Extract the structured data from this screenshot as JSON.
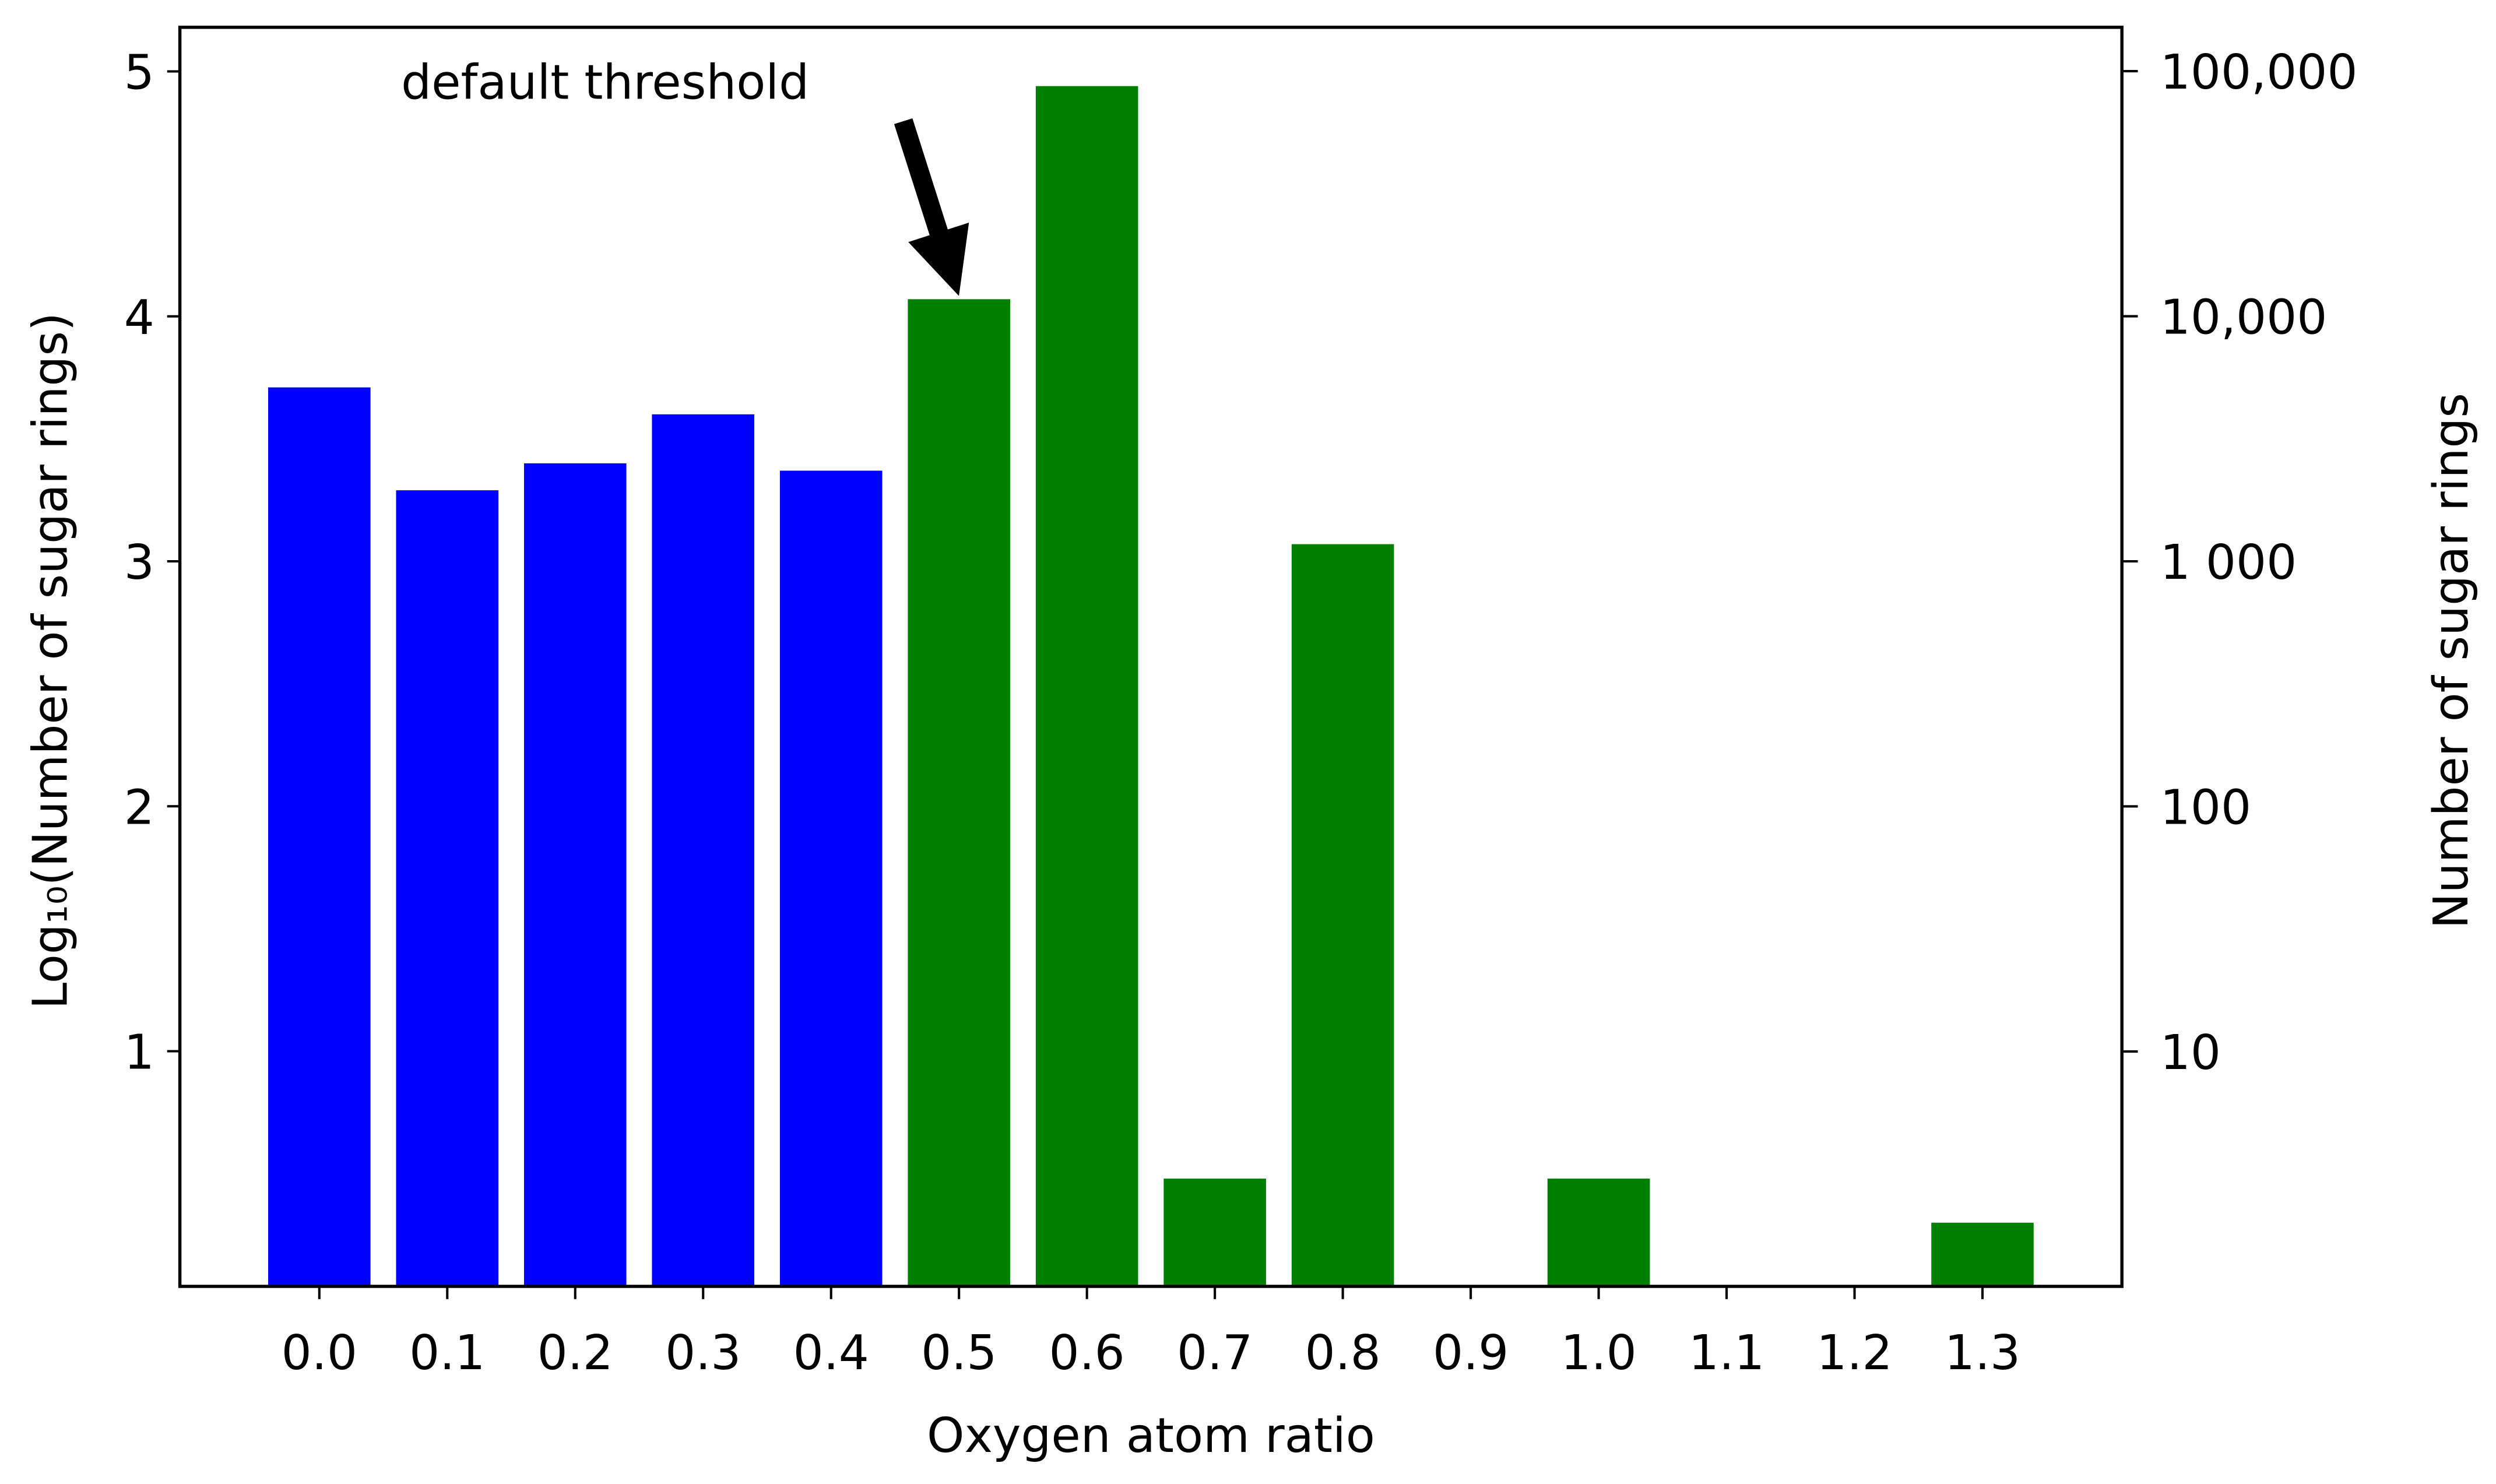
{
  "chart_data": {
    "type": "bar",
    "xlabel": "Oxygen atom ratio",
    "ylabel": "Log₁₀(Number of sugar rings)",
    "y2label": "Number of sugar rings",
    "annotation": "default threshold",
    "categories": [
      "0.0",
      "0.1",
      "0.2",
      "0.3",
      "0.4",
      "0.5",
      "0.6",
      "0.7",
      "0.8",
      "0.9",
      "1.0",
      "1.1",
      "1.2",
      "1.3"
    ],
    "values": [
      3.71,
      3.29,
      3.4,
      3.6,
      3.37,
      4.07,
      4.94,
      0.48,
      3.07,
      null,
      0.48,
      null,
      null,
      0.3
    ],
    "colors": [
      "#0000ff",
      "#0000ff",
      "#0000ff",
      "#0000ff",
      "#0000ff",
      "#008000",
      "#008000",
      "#008000",
      "#008000",
      "#008000",
      "#008000",
      "#008000",
      "#008000",
      "#008000"
    ],
    "ylim": [
      0.04,
      5.18
    ],
    "yticks": [
      1,
      2,
      3,
      4,
      5
    ],
    "y2lim": [
      1.1,
      151000
    ],
    "y2log": true,
    "y2ticks": [
      10,
      100,
      {
        "value": 1000,
        "label": "1 000"
      },
      {
        "value": 10000,
        "label": "10,000"
      },
      {
        "value": 100000,
        "label": "100,000"
      }
    ],
    "annotation_index": 5
  }
}
